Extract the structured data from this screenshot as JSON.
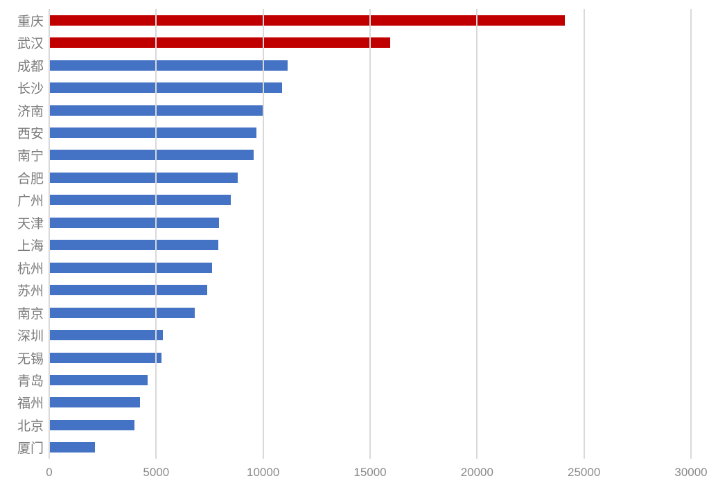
{
  "chart_data": {
    "type": "bar",
    "orientation": "horizontal",
    "title": "",
    "xlabel": "",
    "ylabel": "",
    "categories": [
      "重庆",
      "武汉",
      "成都",
      "长沙",
      "济南",
      "西安",
      "南宁",
      "合肥",
      "广州",
      "天津",
      "上海",
      "杭州",
      "苏州",
      "南京",
      "深圳",
      "无锡",
      "青岛",
      "福州",
      "北京",
      "厦门"
    ],
    "values": [
      24100,
      15950,
      11150,
      10900,
      10050,
      9700,
      9550,
      8800,
      8500,
      7950,
      7900,
      7600,
      7400,
      6800,
      5300,
      5250,
      4600,
      4250,
      4000,
      2150
    ],
    "highlighted_categories": [
      "重庆",
      "武汉"
    ],
    "xlim": [
      0,
      30000
    ],
    "x_ticks": [
      0,
      5000,
      10000,
      15000,
      20000,
      25000,
      30000
    ],
    "grid": "vertical-gridlines",
    "legend": "none"
  },
  "colors": {
    "highlight_bar": "#C00000",
    "default_bar": "#4472C4",
    "gridline": "#D9D9D9",
    "axis_label": "#8A8A8A",
    "category_label": "#7C7C7C",
    "background": "#FFFFFF"
  }
}
